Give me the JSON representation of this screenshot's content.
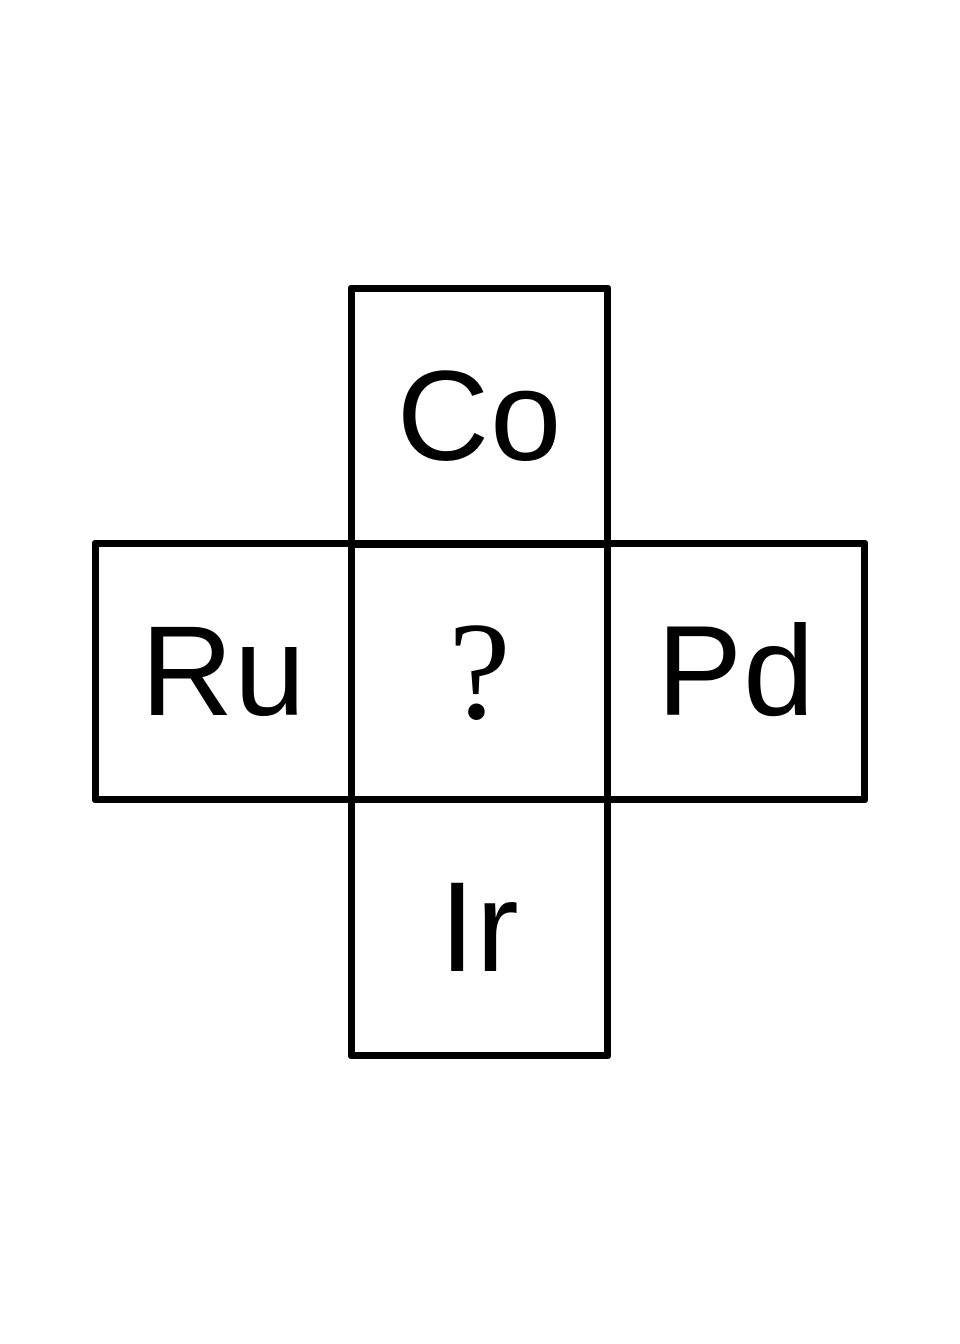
{
  "diagram": {
    "cells": {
      "top": "Co",
      "left": "Ru",
      "center": "?",
      "right": "Pd",
      "bottom": "Ir"
    }
  }
}
